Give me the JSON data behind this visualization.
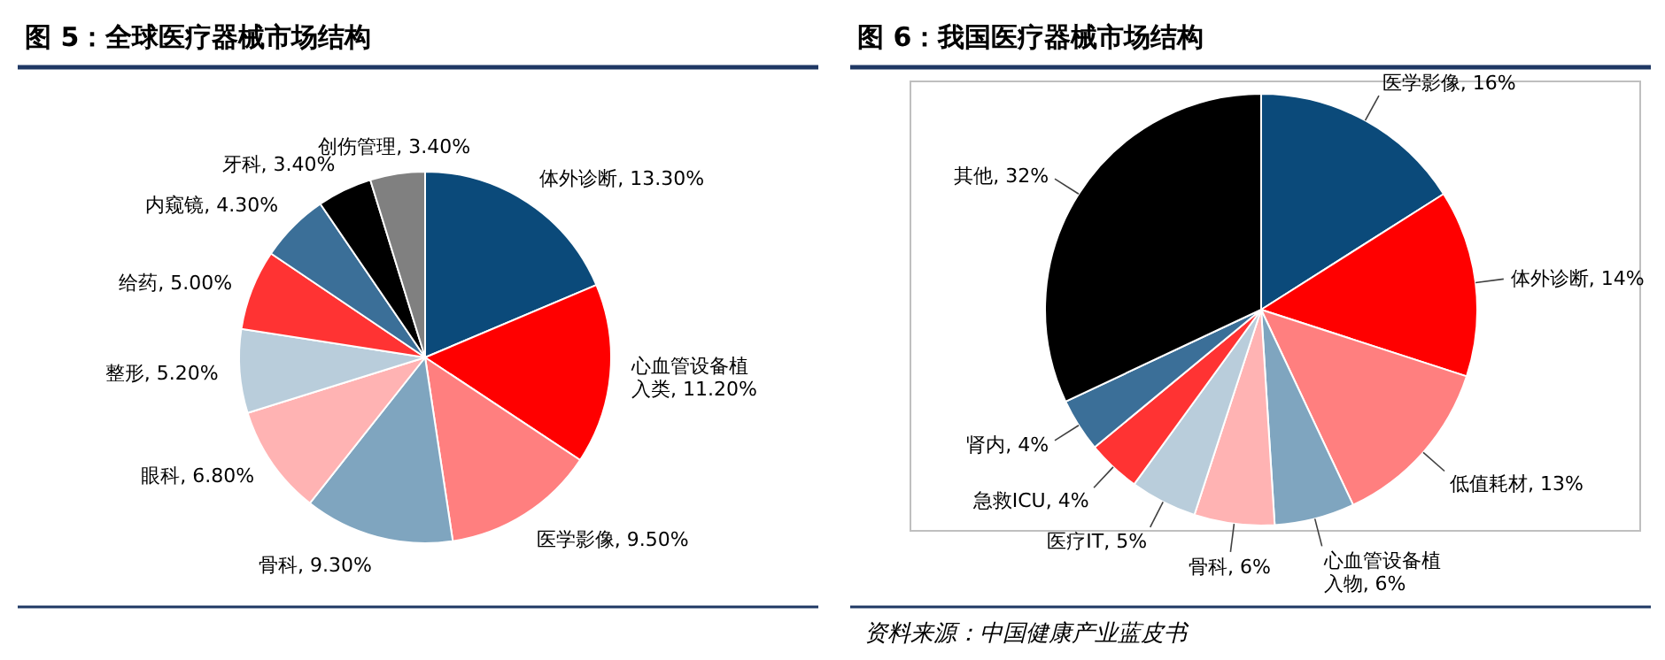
{
  "chart_data": [
    {
      "type": "pie",
      "title": "图 5：全球医疗器械市场结构",
      "categories": [
        "体外诊断",
        "心血管设备植入类",
        "医学影像",
        "骨科",
        "眼科",
        "整形",
        "给药",
        "内窥镜",
        "牙科",
        "创伤管理"
      ],
      "values": [
        13.3,
        11.2,
        9.5,
        9.3,
        6.8,
        5.2,
        5.0,
        4.3,
        3.4,
        3.4
      ],
      "value_labels": [
        "13.30%",
        "11.20%",
        "9.50%",
        "9.30%",
        "6.80%",
        "5.20%",
        "5.00%",
        "4.30%",
        "3.40%",
        "3.40%"
      ],
      "colors": [
        "#0b4a7a",
        "#ff0000",
        "#ff7f7f",
        "#7fa5bf",
        "#ffb3b3",
        "#b9cddb",
        "#ff3333",
        "#3b6f98",
        "#000000",
        "#808080"
      ]
    },
    {
      "type": "pie",
      "title": "图 6：我国医疗器械市场结构",
      "categories": [
        "医学影像",
        "体外诊断",
        "低值耗材",
        "心血管设备植入物",
        "骨科",
        "医疗IT",
        "急救ICU",
        "肾内",
        "其他"
      ],
      "values": [
        16,
        14,
        13,
        6,
        6,
        5,
        4,
        4,
        32
      ],
      "value_labels": [
        "16%",
        "14%",
        "13%",
        "6%",
        "6%",
        "5%",
        "4%",
        "4%",
        "32%"
      ],
      "colors": [
        "#0b4a7a",
        "#ff0000",
        "#ff7f7f",
        "#7fa5bf",
        "#ffb3b3",
        "#b9cddb",
        "#ff3333",
        "#3b6f98",
        "#000000"
      ],
      "annotations": [
        "资料来源：中国健康产业蓝皮书"
      ]
    }
  ]
}
